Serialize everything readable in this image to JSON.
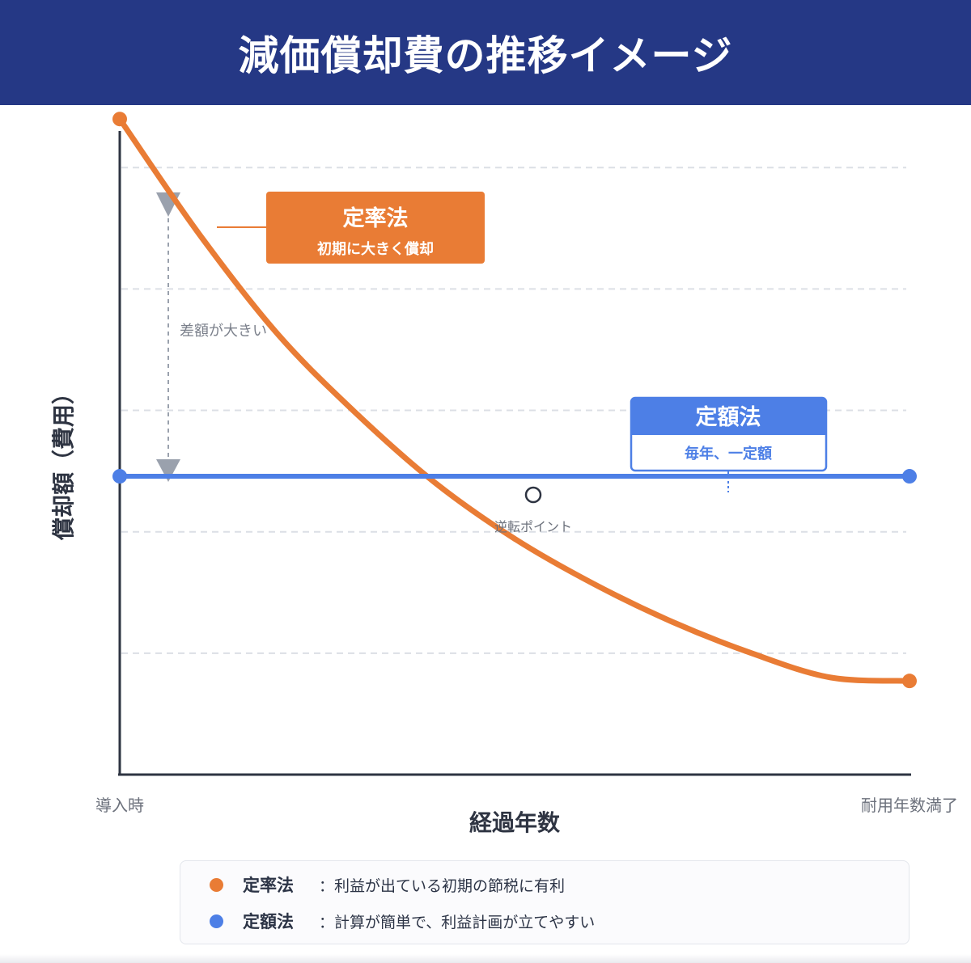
{
  "title": "減価償却費の推移イメージ",
  "chart_data": {
    "type": "line",
    "title": "減価償却費の推移イメージ",
    "xlabel": "経過年数",
    "ylabel": "償却額（費用）",
    "x_tick_labels": {
      "start": "導入時",
      "end": "耐用年数満了"
    },
    "x": [
      0,
      0.1,
      0.2,
      0.3,
      0.4,
      0.5,
      0.6,
      0.7,
      0.8,
      0.9,
      1.0
    ],
    "xlim": [
      0,
      1
    ],
    "ylim": [
      0,
      1
    ],
    "series": [
      {
        "name": "定率法",
        "color": "#e97c35",
        "values": [
          0.945,
          0.78,
          0.635,
          0.52,
          0.42,
          0.34,
          0.275,
          0.22,
          0.175,
          0.14,
          0.135
        ]
      },
      {
        "name": "定額法",
        "color": "#4d7fe6",
        "values": [
          0.43,
          0.43,
          0.43,
          0.43,
          0.43,
          0.43,
          0.43,
          0.43,
          0.43,
          0.43,
          0.43
        ]
      }
    ],
    "grid": "horizontal-dashed",
    "annotations": {
      "diff_label": "差額が大きい",
      "crossover_label": "逆転ポイント",
      "declining_callout": {
        "title": "定率法",
        "subtitle": "初期に大きく償却"
      },
      "straight_callout": {
        "title": "定額法",
        "subtitle": "毎年、一定額"
      }
    }
  },
  "legend": {
    "items": [
      {
        "name": "定率法",
        "color": "#e97c35",
        "desc": "：利益が出ている初期の節税に有利"
      },
      {
        "name": "定額法",
        "color": "#4d7fe6",
        "desc": "：計算が簡単で、利益計画が立てやすい"
      }
    ]
  }
}
